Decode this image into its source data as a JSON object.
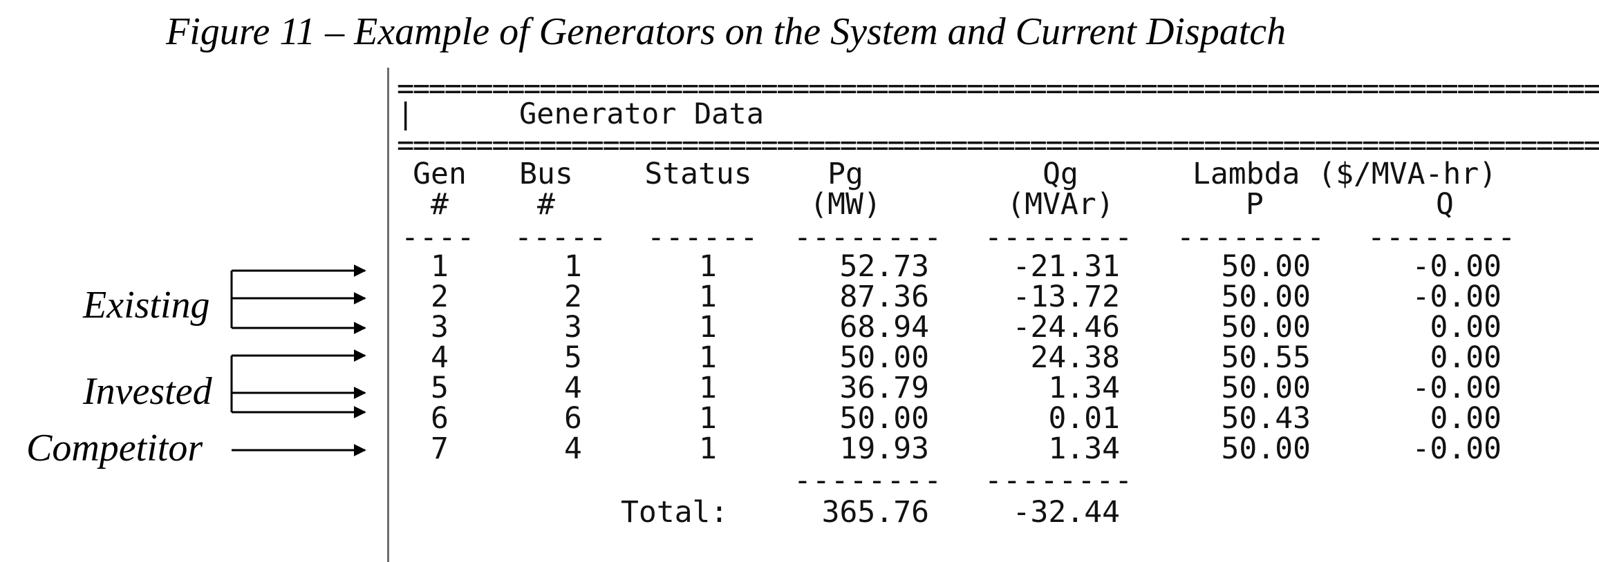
{
  "caption": "Figure 11 – Example of Generators on the System and Current Dispatch",
  "labels": {
    "existing": "Existing",
    "invested": "Invested",
    "competitor": "Competitor"
  },
  "console": {
    "rule_top": "==================================================================================================",
    "section_title": "|      Generator Data",
    "rule_bottom": "==================================================================================================",
    "headers": {
      "gen_top": "Gen",
      "gen_bottom": "#",
      "bus_top": "Bus",
      "bus_bottom": "#",
      "status": "Status",
      "pg_top": "Pg",
      "pg_bottom": "(MW)",
      "qg_top": "Qg",
      "qg_bottom": "(MVAr)",
      "lambda_top": "Lambda ($/MVA-hr)",
      "lambda_p": "P",
      "lambda_q": "Q"
    },
    "dashes": {
      "gen": "----",
      "bus": "-----",
      "status": "------",
      "pg": "--------",
      "qg": "--------",
      "lp": "--------",
      "lq": "--------"
    },
    "rows": [
      {
        "gen": "1",
        "bus": "1",
        "status": "1",
        "pg": "52.73",
        "qg": "-21.31",
        "lp": "50.00",
        "lq": "-0.00"
      },
      {
        "gen": "2",
        "bus": "2",
        "status": "1",
        "pg": "87.36",
        "qg": "-13.72",
        "lp": "50.00",
        "lq": "-0.00"
      },
      {
        "gen": "3",
        "bus": "3",
        "status": "1",
        "pg": "68.94",
        "qg": "-24.46",
        "lp": "50.00",
        "lq": "0.00"
      },
      {
        "gen": "4",
        "bus": "5",
        "status": "1",
        "pg": "50.00",
        "qg": "24.38",
        "lp": "50.55",
        "lq": "0.00"
      },
      {
        "gen": "5",
        "bus": "4",
        "status": "1",
        "pg": "36.79",
        "qg": "1.34",
        "lp": "50.00",
        "lq": "-0.00"
      },
      {
        "gen": "6",
        "bus": "6",
        "status": "1",
        "pg": "50.00",
        "qg": "0.01",
        "lp": "50.43",
        "lq": "0.00"
      },
      {
        "gen": "7",
        "bus": "4",
        "status": "1",
        "pg": "19.93",
        "qg": "1.34",
        "lp": "50.00",
        "lq": "-0.00"
      }
    ],
    "total_dashes": {
      "pg": "--------",
      "qg": "--------"
    },
    "total": {
      "label": "Total:",
      "pg": "365.76",
      "qg": "-32.44"
    }
  }
}
